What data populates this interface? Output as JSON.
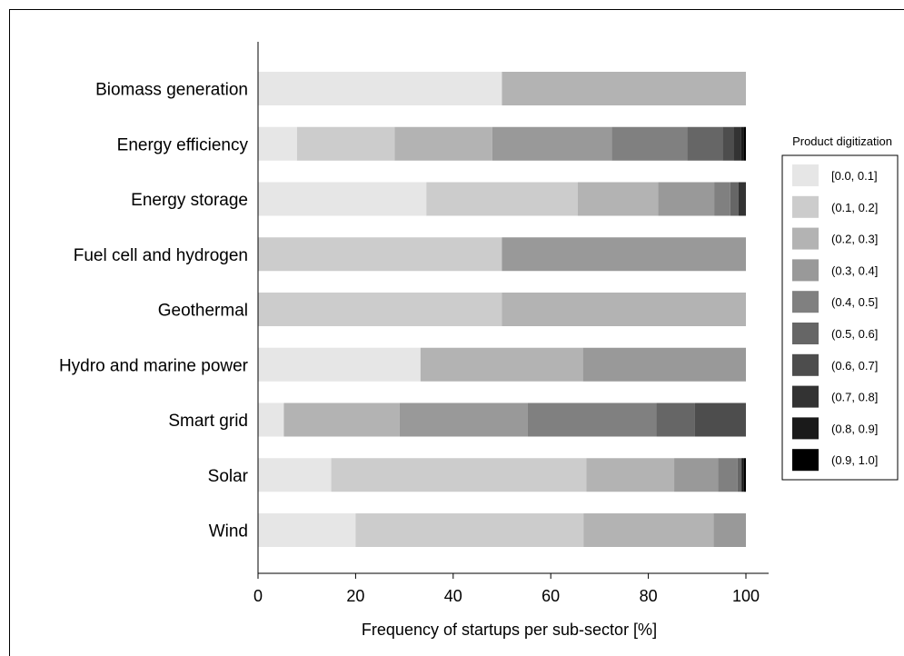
{
  "chart_data": {
    "type": "bar",
    "orientation": "horizontal",
    "stacked": true,
    "title": "",
    "xlabel": "Frequency of startups per sub-sector [%]",
    "ylabel": "",
    "xlim": [
      0,
      100
    ],
    "xticks": [
      "0",
      "20",
      "40",
      "60",
      "80",
      "100"
    ],
    "grid": false,
    "legend_placement": "right",
    "legend_title": "Product digitization",
    "categories": [
      "Biomass generation",
      "Energy efficiency",
      "Energy storage",
      "Fuel cell and hydrogen",
      "Geothermal",
      "Hydro and marine power",
      "Smart grid",
      "Solar",
      "Wind"
    ],
    "series": [
      {
        "name": "[0.0, 0.1]",
        "color": "#e6e6e6",
        "values": [
          50,
          8,
          34.5,
          0,
          0,
          33.3,
          5.3,
          15,
          20
        ]
      },
      {
        "name": "(0.1, 0.2]",
        "color": "#cccccc",
        "values": [
          0,
          20,
          31,
          50,
          50,
          0,
          0,
          52.3,
          46.7
        ]
      },
      {
        "name": "(0.2, 0.3]",
        "color": "#b3b3b3",
        "values": [
          50,
          20,
          16.5,
          0,
          50,
          33.3,
          23.7,
          18,
          26.7
        ]
      },
      {
        "name": "(0.3, 0.4]",
        "color": "#999999",
        "values": [
          0,
          24.5,
          11.5,
          50,
          0,
          33.4,
          26.3,
          9,
          6.6
        ]
      },
      {
        "name": "(0.4, 0.5]",
        "color": "#808080",
        "values": [
          0,
          15.5,
          3.3,
          0,
          0,
          0,
          26.3,
          4,
          0
        ]
      },
      {
        "name": "(0.5, 0.6]",
        "color": "#666666",
        "values": [
          0,
          7.2,
          1.7,
          0,
          0,
          0,
          7.9,
          0.8,
          0
        ]
      },
      {
        "name": "(0.6, 0.7]",
        "color": "#4d4d4d",
        "values": [
          0,
          2.3,
          0,
          0,
          0,
          0,
          10.5,
          0,
          0
        ]
      },
      {
        "name": "(0.7, 0.8]",
        "color": "#333333",
        "values": [
          0,
          1.5,
          1.5,
          0,
          0,
          0,
          0,
          0,
          0
        ]
      },
      {
        "name": "(0.8, 0.9]",
        "color": "#1a1a1a",
        "values": [
          0,
          0.5,
          0,
          0,
          0,
          0,
          0,
          0.5,
          0
        ]
      },
      {
        "name": "(0.9, 1.0]",
        "color": "#000000",
        "values": [
          0,
          0.5,
          0,
          0,
          0,
          0,
          0,
          0.4,
          0
        ]
      }
    ]
  }
}
